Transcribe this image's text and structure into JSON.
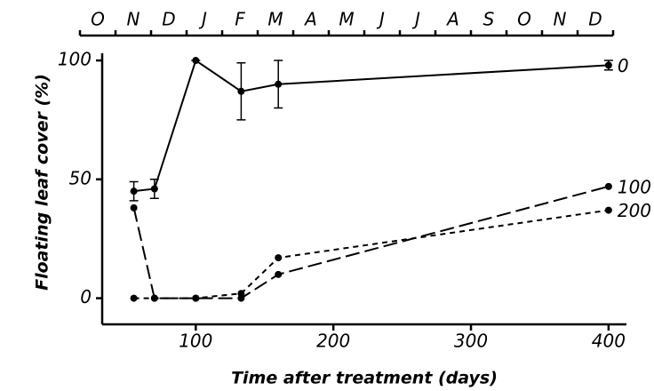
{
  "chart_data": {
    "type": "line",
    "xlabel": "Time after treatment (days)",
    "ylabel": "Floating leaf cover (%)",
    "x": [
      55,
      70,
      100,
      133,
      160,
      400
    ],
    "xlim": [
      32,
      413
    ],
    "xticks": [
      100,
      200,
      300,
      400
    ],
    "ylim": [
      -11,
      103
    ],
    "yticks": [
      0,
      50,
      100
    ],
    "top_axis": [
      "O",
      "N",
      "D",
      "J",
      "F",
      "M",
      "A",
      "M",
      "J",
      "J",
      "A",
      "S",
      "O",
      "N",
      "D"
    ],
    "series": [
      {
        "name": "0",
        "color": "#000000",
        "dash": "none",
        "values": [
          45,
          46,
          100,
          87,
          90,
          98
        ],
        "errors": [
          4,
          4,
          0,
          12,
          10,
          2
        ]
      },
      {
        "name": "100",
        "color": "#000000",
        "dash": "16 6",
        "values": [
          38,
          0,
          0,
          0,
          10,
          47
        ]
      },
      {
        "name": "200",
        "color": "#000000",
        "dash": "6 5",
        "values": [
          0,
          0,
          0,
          2,
          17,
          37
        ]
      }
    ]
  }
}
